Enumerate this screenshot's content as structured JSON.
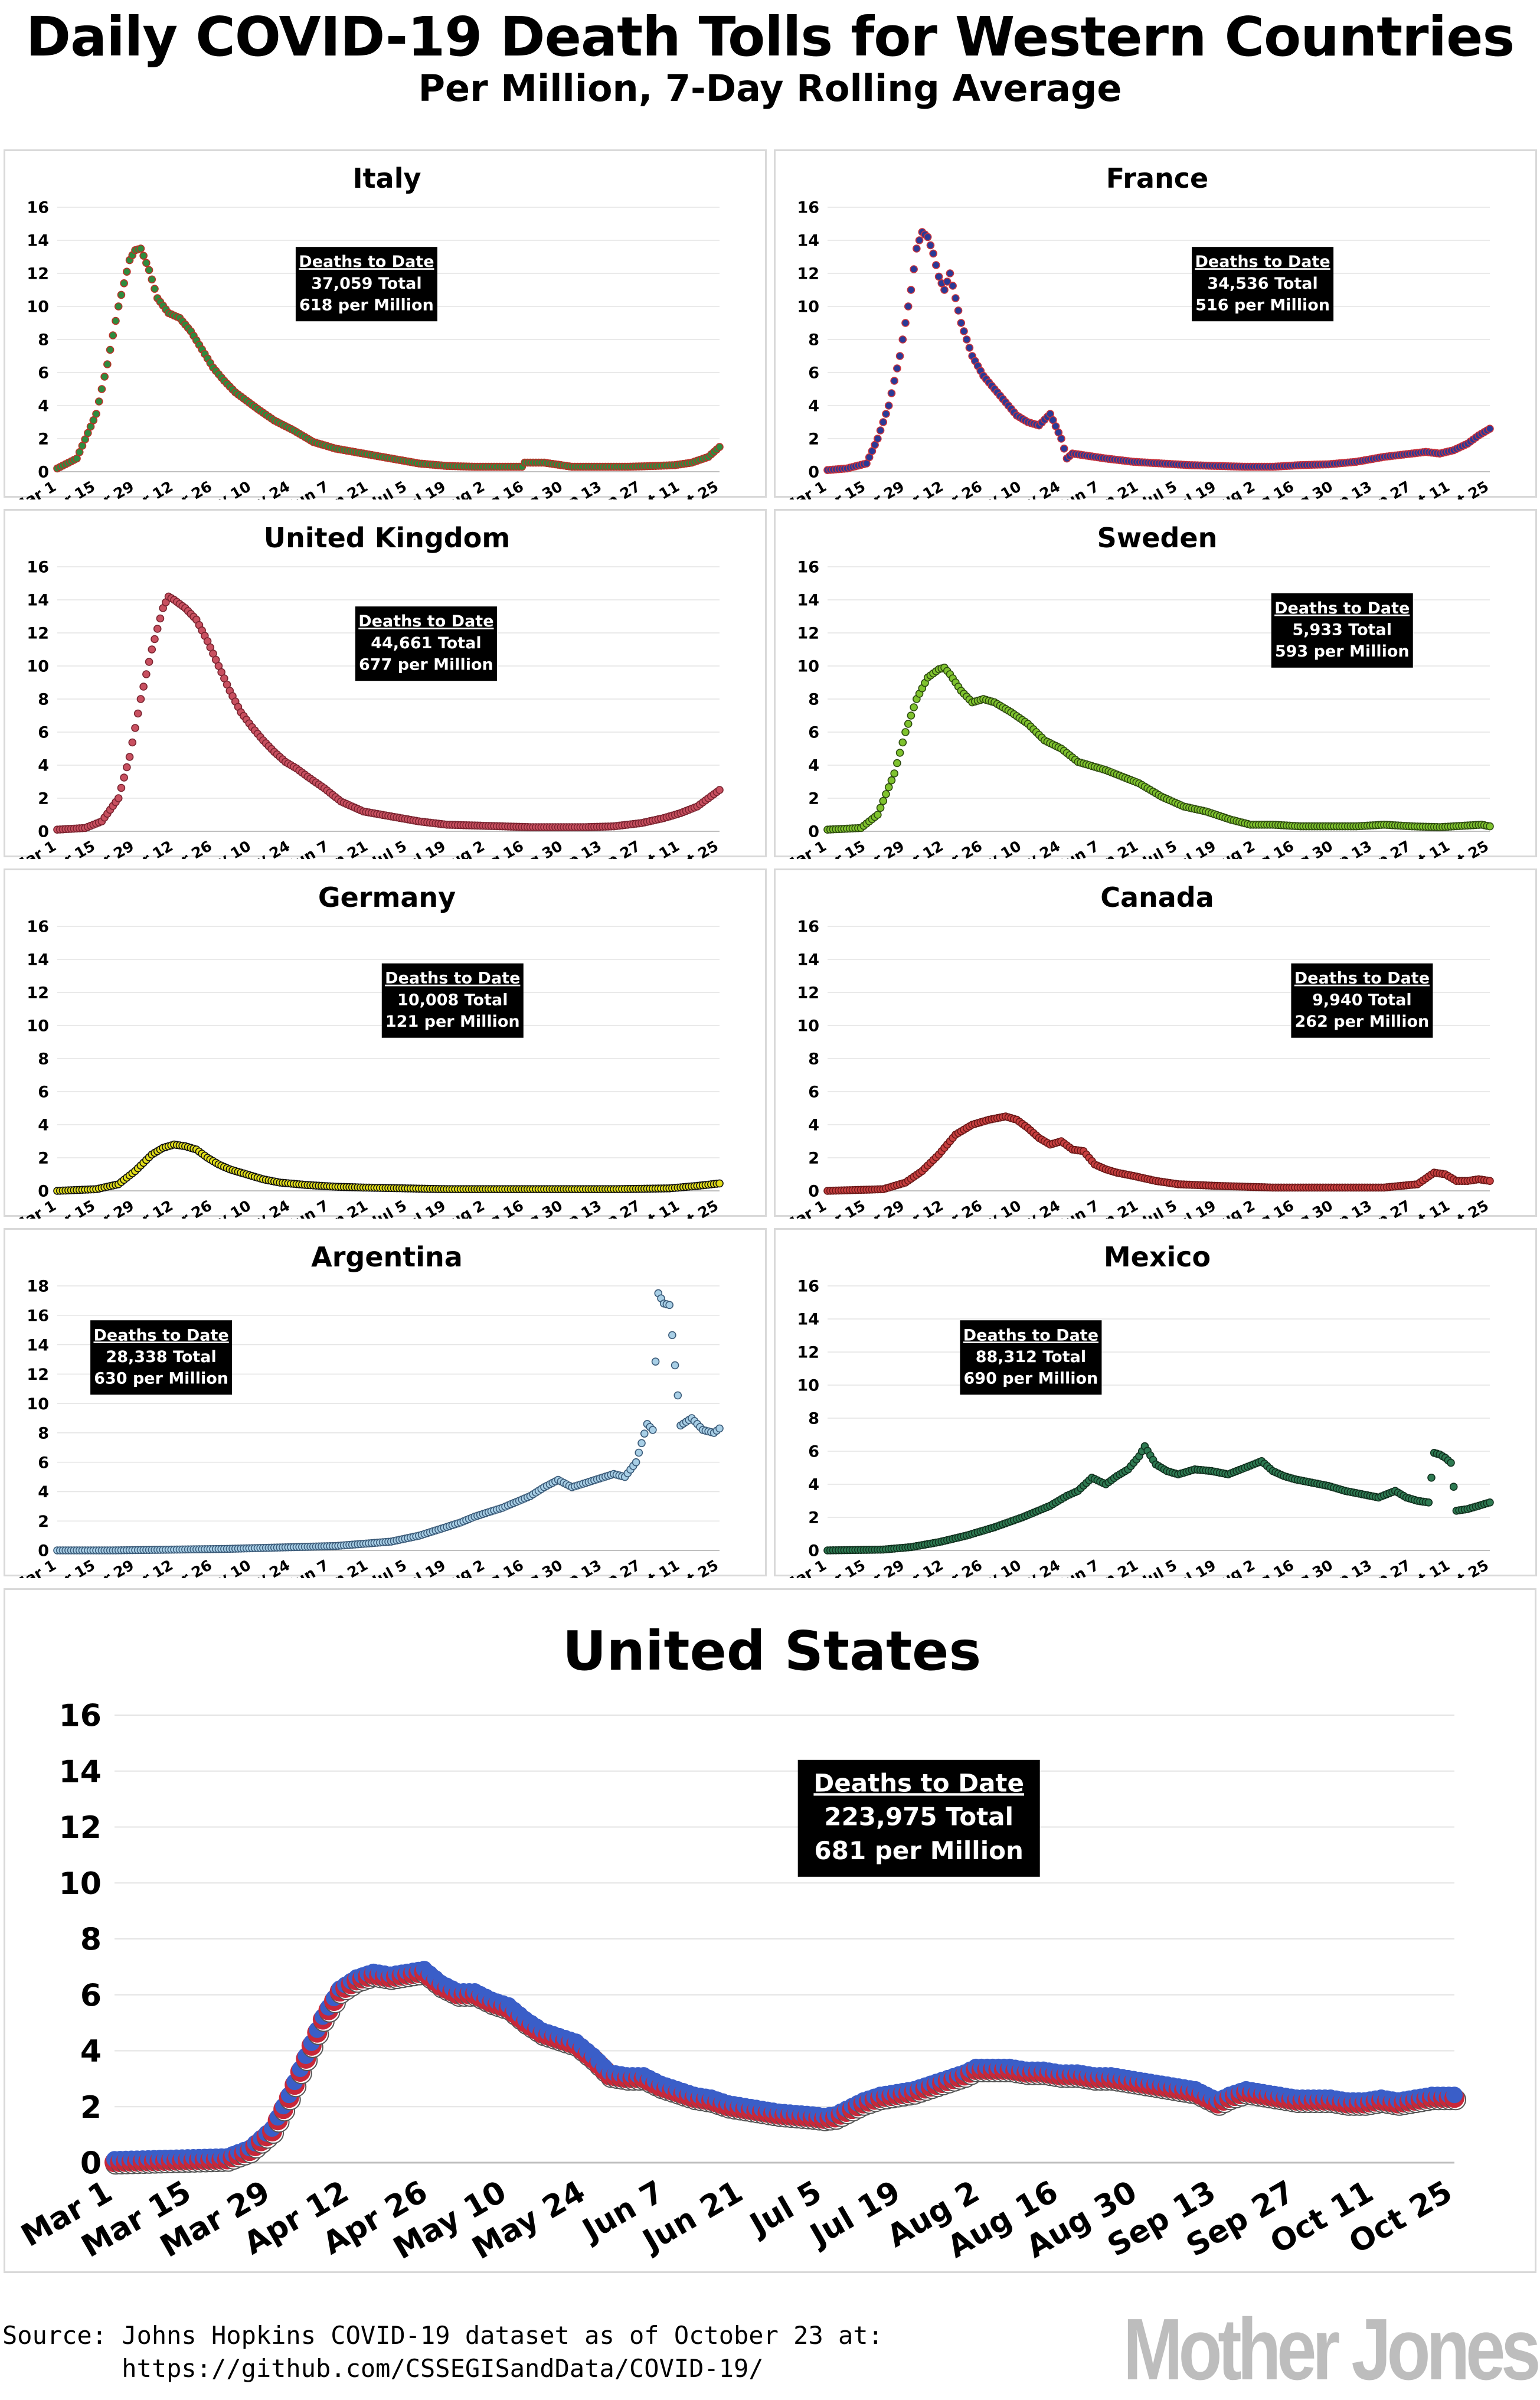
{
  "header": {
    "title": "Daily COVID-19 Death Tolls for Western Countries",
    "subtitle": "Per Million, 7-Day Rolling Average"
  },
  "box_heading": "Deaths to Date",
  "x_tick_labels": [
    "Mar 1",
    "Mar 15",
    "Mar 29",
    "Apr 12",
    "Apr 26",
    "May 10",
    "May 24",
    "Jun 7",
    "Jun 21",
    "Jul 5",
    "Jul 19",
    "Aug 2",
    "Aug 16",
    "Aug 30",
    "Sep 13",
    "Sep 27",
    "Oct 11",
    "Oct 25"
  ],
  "source_lines": [
    "Source: Johns Hopkins COVID-19 dataset as of October 23 at:",
    "        https://github.com/CSSEGISandData/COVID-19/"
  ],
  "logo": "Mother Jones",
  "chart_data": [
    {
      "type": "scatter",
      "title": "Italy",
      "ylim": [
        0,
        16
      ],
      "yticks": [
        0,
        2,
        4,
        6,
        8,
        10,
        12,
        14,
        16
      ],
      "x_unit": "days since Mar 1",
      "color": "#2e8b3e",
      "edge_color": "#b83228",
      "box": {
        "total": "37,059 Total",
        "per_million": "618 per Million"
      },
      "series": [
        {
          "x": [
            0,
            7,
            14,
            18,
            22,
            26,
            28,
            30,
            33,
            36,
            40,
            44,
            48,
            52,
            56,
            60,
            64,
            68,
            72,
            78,
            85,
            92,
            100,
            110,
            120,
            130,
            140,
            150,
            160,
            167,
            168,
            175,
            185,
            195,
            205,
            215,
            222,
            228,
            234,
            238
          ],
          "y": [
            0.2,
            0.8,
            3.5,
            6.5,
            10,
            12.8,
            13.4,
            13.5,
            12.2,
            10.5,
            9.6,
            9.3,
            8.5,
            7.4,
            6.3,
            5.5,
            4.8,
            4.3,
            3.8,
            3.1,
            2.5,
            1.8,
            1.4,
            1.1,
            0.8,
            0.5,
            0.35,
            0.3,
            0.3,
            0.3,
            0.55,
            0.55,
            0.3,
            0.3,
            0.3,
            0.35,
            0.4,
            0.55,
            0.9,
            1.5
          ]
        }
      ]
    },
    {
      "type": "scatter",
      "title": "France",
      "ylim": [
        0,
        16
      ],
      "yticks": [
        0,
        2,
        4,
        6,
        8,
        10,
        12,
        14,
        16
      ],
      "x_unit": "days since Mar 1",
      "color": "#2a3a96",
      "edge_color": "#c8323c",
      "box": {
        "total": "34,536 Total",
        "per_million": "516 per Million"
      },
      "series": [
        {
          "x": [
            0,
            7,
            14,
            18,
            22,
            26,
            30,
            32,
            34,
            36,
            38,
            40,
            42,
            44,
            46,
            48,
            52,
            56,
            60,
            64,
            68,
            72,
            76,
            80,
            84,
            86,
            88,
            92,
            100,
            110,
            120,
            130,
            140,
            150,
            160,
            170,
            180,
            190,
            200,
            210,
            215,
            220,
            225,
            230,
            234,
            238
          ],
          "y": [
            0.1,
            0.2,
            0.5,
            2,
            4,
            7,
            11,
            13.5,
            14.5,
            14.2,
            13.2,
            11.8,
            11,
            12,
            10.5,
            9,
            7,
            5.8,
            5,
            4.2,
            3.4,
            3,
            2.8,
            3.5,
            2,
            0.8,
            1.1,
            1,
            0.8,
            0.6,
            0.5,
            0.4,
            0.35,
            0.3,
            0.3,
            0.4,
            0.45,
            0.6,
            0.9,
            1.1,
            1.2,
            1.1,
            1.3,
            1.7,
            2.2,
            2.6
          ]
        }
      ]
    },
    {
      "type": "scatter",
      "title": "United Kingdom",
      "ylim": [
        0,
        16
      ],
      "yticks": [
        0,
        2,
        4,
        6,
        8,
        10,
        12,
        14,
        16
      ],
      "x_unit": "days since Mar 1",
      "color": "#c85060",
      "edge_color": "#7a2430",
      "box": {
        "total": "44,661 Total",
        "per_million": "677 per Million"
      },
      "series": [
        {
          "x": [
            0,
            10,
            16,
            22,
            26,
            30,
            34,
            38,
            40,
            42,
            46,
            50,
            54,
            58,
            62,
            66,
            70,
            74,
            78,
            82,
            86,
            90,
            96,
            102,
            110,
            120,
            130,
            140,
            150,
            160,
            170,
            180,
            190,
            200,
            210,
            218,
            224,
            230,
            234,
            238
          ],
          "y": [
            0.1,
            0.2,
            0.6,
            2,
            4.5,
            8,
            11,
            13.5,
            14.2,
            14,
            13.5,
            12.8,
            11.5,
            10,
            8.5,
            7.2,
            6.3,
            5.5,
            4.8,
            4.2,
            3.8,
            3.3,
            2.6,
            1.8,
            1.2,
            0.9,
            0.6,
            0.4,
            0.35,
            0.3,
            0.25,
            0.25,
            0.25,
            0.3,
            0.5,
            0.8,
            1.1,
            1.5,
            2,
            2.5
          ]
        }
      ]
    },
    {
      "type": "scatter",
      "title": "Sweden",
      "ylim": [
        0,
        16
      ],
      "yticks": [
        0,
        2,
        4,
        6,
        8,
        10,
        12,
        14,
        16
      ],
      "x_unit": "days since Mar 1",
      "color": "#7fc32e",
      "edge_color": "#2d4a10",
      "box": {
        "total": "5,933 Total",
        "per_million": "593 per Million"
      },
      "series": [
        {
          "x": [
            0,
            12,
            18,
            24,
            28,
            32,
            36,
            40,
            42,
            44,
            48,
            52,
            56,
            60,
            66,
            72,
            78,
            84,
            90,
            96,
            100,
            106,
            112,
            120,
            128,
            136,
            145,
            152,
            160,
            170,
            180,
            190,
            200,
            210,
            220,
            230,
            235,
            238
          ],
          "y": [
            0.1,
            0.2,
            1,
            3.5,
            6,
            8,
            9.3,
            9.8,
            9.9,
            9.5,
            8.5,
            7.8,
            8,
            7.8,
            7.2,
            6.5,
            5.5,
            5,
            4.2,
            3.9,
            3.7,
            3.3,
            2.9,
            2.1,
            1.5,
            1.2,
            0.7,
            0.4,
            0.4,
            0.3,
            0.3,
            0.3,
            0.4,
            0.3,
            0.25,
            0.35,
            0.4,
            0.3
          ]
        }
      ]
    },
    {
      "type": "scatter",
      "title": "Germany",
      "ylim": [
        0,
        16
      ],
      "yticks": [
        0,
        2,
        4,
        6,
        8,
        10,
        12,
        14,
        16
      ],
      "x_unit": "days since Mar 1",
      "color": "#e2de1a",
      "edge_color": "#101010",
      "box": {
        "total": "10,008 Total",
        "per_million": "121 per Million"
      },
      "series": [
        {
          "x": [
            0,
            14,
            22,
            28,
            34,
            38,
            42,
            46,
            50,
            54,
            58,
            62,
            66,
            70,
            74,
            80,
            90,
            100,
            110,
            125,
            140,
            160,
            180,
            200,
            220,
            230,
            238
          ],
          "y": [
            0,
            0.1,
            0.4,
            1.2,
            2.2,
            2.6,
            2.8,
            2.7,
            2.5,
            2,
            1.6,
            1.3,
            1.1,
            0.9,
            0.7,
            0.5,
            0.35,
            0.25,
            0.2,
            0.15,
            0.1,
            0.1,
            0.1,
            0.1,
            0.15,
            0.3,
            0.45
          ]
        }
      ]
    },
    {
      "type": "scatter",
      "title": "Canada",
      "ylim": [
        0,
        16
      ],
      "yticks": [
        0,
        2,
        4,
        6,
        8,
        10,
        12,
        14,
        16
      ],
      "x_unit": "days since Mar 1",
      "color": "#c84040",
      "edge_color": "#6a1818",
      "box": {
        "total": "9,940 Total",
        "per_million": "262 per Million"
      },
      "series": [
        {
          "x": [
            0,
            20,
            28,
            34,
            40,
            46,
            52,
            58,
            64,
            68,
            72,
            76,
            80,
            84,
            88,
            92,
            96,
            100,
            104,
            110,
            118,
            126,
            140,
            160,
            180,
            200,
            212,
            218,
            222,
            226,
            230,
            234,
            238
          ],
          "y": [
            0,
            0.1,
            0.5,
            1.2,
            2.2,
            3.4,
            4,
            4.3,
            4.5,
            4.3,
            3.8,
            3.2,
            2.8,
            3,
            2.5,
            2.4,
            1.6,
            1.3,
            1.1,
            0.9,
            0.6,
            0.4,
            0.3,
            0.2,
            0.2,
            0.2,
            0.4,
            1.1,
            1,
            0.6,
            0.6,
            0.7,
            0.6
          ]
        }
      ]
    },
    {
      "type": "scatter",
      "title": "Argentina",
      "ylim": [
        0,
        18
      ],
      "yticks": [
        0,
        2,
        4,
        6,
        8,
        10,
        12,
        14,
        16,
        18
      ],
      "x_unit": "days since Mar 1",
      "color": "#a8cfe6",
      "edge_color": "#3a5a78",
      "box": {
        "total": "28,338 Total",
        "per_million": "630 per Million"
      },
      "series": [
        {
          "x": [
            0,
            20,
            40,
            60,
            80,
            100,
            110,
            120,
            125,
            130,
            135,
            140,
            145,
            150,
            155,
            160,
            165,
            170,
            175,
            180,
            185,
            190,
            195,
            200,
            204,
            208,
            212,
            214,
            216,
            218,
            220,
            224,
            228,
            232,
            236,
            238
          ],
          "y": [
            0,
            0,
            0.05,
            0.1,
            0.2,
            0.3,
            0.45,
            0.6,
            0.8,
            1,
            1.3,
            1.6,
            1.9,
            2.3,
            2.6,
            2.9,
            3.3,
            3.7,
            4.3,
            4.8,
            4.3,
            4.6,
            4.9,
            5.2,
            5,
            6,
            8.6,
            8.2,
            17.5,
            16.8,
            16.7,
            8.5,
            9,
            8.2,
            8,
            8.3
          ]
        }
      ]
    },
    {
      "type": "scatter",
      "title": "Mexico",
      "ylim": [
        0,
        16
      ],
      "yticks": [
        0,
        2,
        4,
        6,
        8,
        10,
        12,
        14,
        16
      ],
      "x_unit": "days since Mar 1",
      "color": "#2e7a52",
      "edge_color": "#10301e",
      "box": {
        "total": "88,312 Total",
        "per_million": "690 per Million"
      },
      "series": [
        {
          "x": [
            0,
            20,
            30,
            40,
            50,
            60,
            70,
            80,
            86,
            90,
            95,
            100,
            104,
            108,
            112,
            114,
            118,
            122,
            126,
            132,
            138,
            144,
            150,
            156,
            160,
            164,
            168,
            174,
            180,
            186,
            192,
            198,
            204,
            208,
            212,
            216,
            218,
            220,
            222,
            224,
            226,
            230,
            234,
            238
          ],
          "y": [
            0,
            0.05,
            0.2,
            0.5,
            0.9,
            1.4,
            2,
            2.7,
            3.3,
            3.6,
            4.4,
            4,
            4.5,
            4.9,
            5.7,
            6.3,
            5.2,
            4.8,
            4.6,
            4.9,
            4.8,
            4.6,
            5,
            5.4,
            4.8,
            4.5,
            4.3,
            4.1,
            3.9,
            3.6,
            3.4,
            3.2,
            3.6,
            3.2,
            3.0,
            2.9,
            5.9,
            5.8,
            5.6,
            5.3,
            2.4,
            2.5,
            2.7,
            2.9
          ]
        }
      ]
    },
    {
      "type": "scatter",
      "title": "United States",
      "ylim": [
        0,
        16
      ],
      "yticks": [
        0,
        2,
        4,
        6,
        8,
        10,
        12,
        14,
        16
      ],
      "x_unit": "days since Mar 1",
      "color": "#3a5ec8",
      "edge_color": "#c8283a",
      "box": {
        "total": "223,975 Total",
        "per_million": "681 per Million"
      },
      "series": [
        {
          "x": [
            0,
            10,
            20,
            24,
            28,
            31,
            34,
            37,
            40,
            43,
            46,
            49,
            52,
            55,
            58,
            61,
            64,
            67,
            70,
            73,
            76,
            79,
            82,
            85,
            88,
            91,
            94,
            97,
            100,
            103,
            106,
            109,
            112,
            115,
            118,
            121,
            124,
            126,
            128,
            130,
            133,
            136,
            139,
            142,
            145,
            148,
            151,
            153,
            156,
            159,
            162,
            165,
            168,
            171,
            174,
            177,
            180,
            183,
            186,
            189,
            192,
            194,
            196,
            198,
            201,
            204,
            207,
            210,
            213,
            216,
            219,
            222,
            225,
            228,
            231,
            234,
            237
          ],
          "y": [
            0.1,
            0.15,
            0.2,
            0.5,
            1.2,
            2.4,
            3.8,
            5.2,
            6.2,
            6.6,
            6.8,
            6.7,
            6.8,
            6.9,
            6.4,
            6.1,
            6.1,
            5.8,
            5.6,
            5.1,
            4.7,
            4.5,
            4.3,
            3.8,
            3.2,
            3.1,
            3.1,
            2.8,
            2.6,
            2.4,
            2.3,
            2.1,
            2.0,
            1.9,
            1.8,
            1.75,
            1.7,
            1.65,
            1.7,
            1.9,
            2.2,
            2.4,
            2.5,
            2.6,
            2.8,
            3.0,
            3.2,
            3.4,
            3.4,
            3.4,
            3.3,
            3.3,
            3.2,
            3.2,
            3.1,
            3.1,
            3.0,
            2.9,
            2.8,
            2.7,
            2.6,
            2.4,
            2.2,
            2.4,
            2.6,
            2.5,
            2.4,
            2.3,
            2.3,
            2.3,
            2.2,
            2.2,
            2.3,
            2.2,
            2.3,
            2.4,
            2.4
          ]
        }
      ]
    }
  ]
}
